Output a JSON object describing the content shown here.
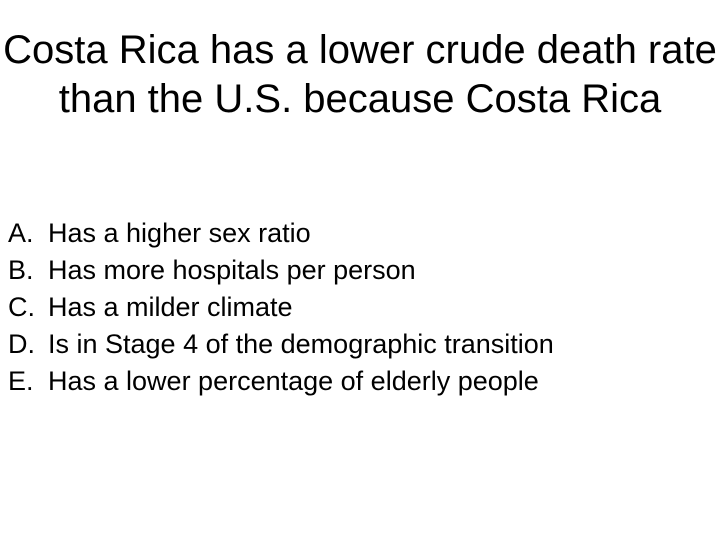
{
  "title": "Costa Rica has a lower crude death rate than the U.S. because Costa Rica",
  "options": [
    {
      "letter": "A.",
      "text": "Has a higher sex ratio"
    },
    {
      "letter": "B.",
      "text": "Has more hospitals per person"
    },
    {
      "letter": "C.",
      "text": "Has a milder climate"
    },
    {
      "letter": "D.",
      "text": "Is in Stage 4 of the demographic transition"
    },
    {
      "letter": "E.",
      "text": "Has a lower percentage of elderly people"
    }
  ]
}
